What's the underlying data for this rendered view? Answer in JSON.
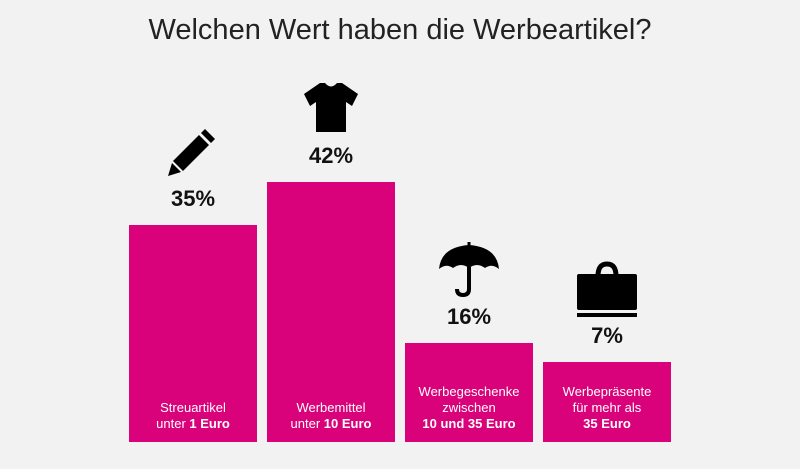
{
  "chart_data": {
    "type": "bar",
    "title": "Welchen Wert haben die Werbeartikel?",
    "bar_color": "#d9027a",
    "value_unit": "%",
    "grid": false,
    "categories": [
      {
        "lines": [
          [
            {
              "t": "Streuartikel",
              "b": false
            }
          ],
          [
            {
              "t": "unter ",
              "b": false
            },
            {
              "t": "1 Euro",
              "b": true
            }
          ]
        ],
        "icon": "pencil-icon",
        "value": 35,
        "value_label": "35%"
      },
      {
        "lines": [
          [
            {
              "t": "Werbemittel",
              "b": false
            }
          ],
          [
            {
              "t": "unter ",
              "b": false
            },
            {
              "t": "10 Euro",
              "b": true
            }
          ]
        ],
        "icon": "tshirt-icon",
        "value": 42,
        "value_label": "42%"
      },
      {
        "lines": [
          [
            {
              "t": "Werbegeschenke",
              "b": false
            }
          ],
          [
            {
              "t": "zwischen",
              "b": false
            }
          ],
          [
            {
              "t": "10 und 35 Euro",
              "b": true
            }
          ]
        ],
        "icon": "umbrella-icon",
        "value": 16,
        "value_label": "16%"
      },
      {
        "lines": [
          [
            {
              "t": "Werbepräsente",
              "b": false
            }
          ],
          [
            {
              "t": "für mehr als",
              "b": false
            }
          ],
          [
            {
              "t": "35 Euro",
              "b": true
            }
          ]
        ],
        "icon": "bag-icon",
        "value": 7,
        "value_label": "7%"
      }
    ]
  }
}
